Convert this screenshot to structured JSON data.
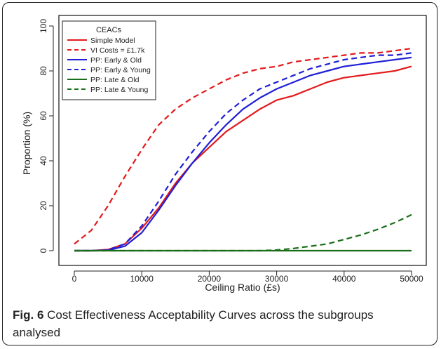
{
  "chart_data": {
    "type": "line",
    "title": "",
    "xlabel": "Ceiling Ratio (£s)",
    "ylabel": "Proportion (%)",
    "xlim": [
      0,
      50000
    ],
    "ylim": [
      0,
      100
    ],
    "x_ticks": [
      0,
      10000,
      20000,
      30000,
      40000,
      50000
    ],
    "y_ticks": [
      0,
      20,
      40,
      60,
      80,
      100
    ],
    "grid": false,
    "legend": {
      "title": "CEACs",
      "position": "top-left"
    },
    "x": [
      0,
      2500,
      5000,
      7500,
      10000,
      12500,
      15000,
      17500,
      20000,
      22500,
      25000,
      27500,
      30000,
      32500,
      35000,
      37500,
      40000,
      42500,
      45000,
      47500,
      50000
    ],
    "series": [
      {
        "name": "Simple Model",
        "color": "#e31a1c",
        "dash": false,
        "values": [
          0,
          0,
          0.5,
          3,
          10,
          19,
          30,
          39,
          46,
          53,
          58,
          63,
          67,
          69,
          72,
          75,
          77,
          78,
          79,
          80,
          82
        ]
      },
      {
        "name": "VI Costs = £1.7k",
        "color": "#e31a1c",
        "dash": true,
        "values": [
          3,
          9,
          20,
          33,
          45,
          56,
          63,
          68,
          72,
          76,
          79,
          81,
          82,
          84,
          85,
          86,
          87,
          88,
          88,
          89,
          90
        ]
      },
      {
        "name": "PP: Early & Old",
        "color": "#1f1fd6",
        "dash": false,
        "values": [
          0,
          0,
          0.2,
          2,
          8,
          18,
          29,
          39,
          48,
          56,
          63,
          68,
          72,
          75,
          78,
          80,
          82,
          83,
          84,
          85,
          86
        ]
      },
      {
        "name": "PP: Early & Young",
        "color": "#1f1fd6",
        "dash": true,
        "values": [
          0,
          0,
          0.3,
          3,
          11,
          22,
          34,
          44,
          53,
          61,
          67,
          72,
          75,
          78,
          81,
          83,
          85,
          86,
          87,
          87,
          88
        ]
      },
      {
        "name": "PP: Late & Old",
        "color": "#1a6e1a",
        "dash": false,
        "values": [
          0,
          0,
          0,
          0,
          0,
          0,
          0,
          0,
          0,
          0,
          0,
          0,
          0,
          0,
          0,
          0,
          0,
          0,
          0,
          0,
          0
        ]
      },
      {
        "name": "PP: Late & Young",
        "color": "#1a6e1a",
        "dash": true,
        "values": [
          0,
          0,
          0,
          0,
          0,
          0,
          0,
          0,
          0,
          0,
          0,
          0,
          0.3,
          1,
          2,
          3,
          5,
          7,
          9.5,
          12.5,
          16
        ]
      }
    ]
  },
  "caption": {
    "label": "Fig. 6",
    "text": " Cost Effectiveness Acceptability Curves across the subgroups analysed"
  }
}
